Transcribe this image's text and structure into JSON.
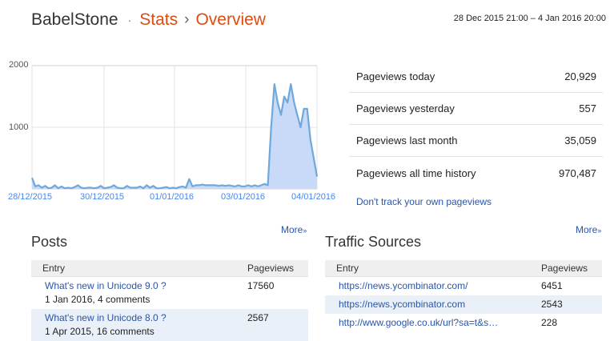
{
  "header": {
    "blog_name": "BabelStone",
    "separator_dot": "·",
    "crumb_stats": "Stats",
    "crumb_arrow": "›",
    "crumb_overview": "Overview",
    "date_range": "28 Dec 2015 21:00 – 4 Jan 2016 20:00"
  },
  "chart_data": {
    "type": "area",
    "xlabel": "",
    "ylabel": "",
    "ylim": [
      0,
      2000
    ],
    "yticks": [
      "2000",
      "1000"
    ],
    "xticks": [
      "28/12/2015",
      "30/12/2015",
      "01/01/2016",
      "03/01/2016",
      "04/01/2016"
    ],
    "grid": true,
    "series": [
      {
        "values": [
          180,
          40,
          60,
          20,
          50,
          10,
          20,
          60,
          10,
          40,
          10,
          20,
          10,
          30,
          60,
          20,
          10,
          20,
          20,
          10,
          20,
          50,
          10,
          20,
          30,
          60,
          20,
          10,
          10,
          50,
          20,
          20,
          20,
          40,
          10,
          60,
          20,
          50,
          10,
          10,
          20,
          30,
          10,
          20,
          10,
          30,
          40,
          20,
          160,
          40,
          60,
          60,
          70,
          60,
          60,
          60,
          60,
          50,
          60,
          50,
          60,
          50,
          40,
          60,
          40,
          40,
          60,
          40,
          60,
          40,
          60,
          80,
          60,
          1000,
          1700,
          1400,
          1200,
          1500,
          1400,
          1700,
          1400,
          1200,
          1000,
          1300,
          1300,
          800,
          500,
          200
        ]
      }
    ],
    "color": "#6fa8dc",
    "fill": "#c9daf8"
  },
  "stats": [
    {
      "label": "Pageviews today",
      "value": "20,929"
    },
    {
      "label": "Pageviews yesterday",
      "value": "557"
    },
    {
      "label": "Pageviews last month",
      "value": "35,059"
    },
    {
      "label": "Pageviews all time history",
      "value": "970,487"
    }
  ],
  "dont_track": "Don't track your own pageviews",
  "more_label": "More",
  "more_arrow": "»",
  "posts": {
    "title": "Posts",
    "col_entry": "Entry",
    "col_pageviews": "Pageviews",
    "rows": [
      {
        "title": "What's new in Unicode 9.0 ?",
        "meta": "1 Jan 2016, 4 comments",
        "views": "17560"
      },
      {
        "title": "What's new in Unicode 8.0 ?",
        "meta": "1 Apr 2015, 16 comments",
        "views": "2567"
      }
    ]
  },
  "traffic": {
    "title": "Traffic Sources",
    "col_entry": "Entry",
    "col_pageviews": "Pageviews",
    "rows": [
      {
        "url": "https://news.ycombinator.com/",
        "views": "6451"
      },
      {
        "url": "https://news.ycombinator.com",
        "views": "2543"
      },
      {
        "url": "http://www.google.co.uk/url?sa=t&s…",
        "views": "228"
      }
    ]
  }
}
